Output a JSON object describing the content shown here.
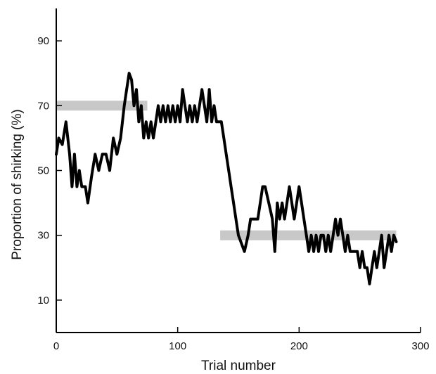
{
  "chart_data": {
    "type": "line",
    "xlabel": "Trial number",
    "ylabel": "Proportion of shirking (%)",
    "xlim": [
      0,
      300
    ],
    "ylim": [
      0,
      100
    ],
    "x_ticks": [
      0,
      100,
      200,
      300
    ],
    "y_ticks": [
      10,
      30,
      50,
      70,
      90
    ],
    "grid": false,
    "legend": "none",
    "line_color": "#000000",
    "reference_color": "#c8c8c8",
    "reference_lines": [
      {
        "y": 70,
        "x_start": 0,
        "x_end": 75
      },
      {
        "y": 30,
        "x_start": 135,
        "x_end": 280
      }
    ],
    "series": [
      {
        "x": [
          0,
          2,
          5,
          8,
          11,
          13,
          15,
          17,
          19,
          21,
          24,
          26,
          29,
          32,
          35,
          38,
          41,
          44,
          47,
          50,
          53,
          56,
          58,
          60,
          62,
          64,
          66,
          68,
          70,
          72,
          74,
          76,
          78,
          80,
          82,
          84,
          86,
          88,
          90,
          92,
          94,
          96,
          98,
          100,
          102,
          104,
          106,
          108,
          110,
          112,
          114,
          116,
          118,
          120,
          122,
          124,
          126,
          128,
          130,
          132,
          134,
          136,
          138,
          140,
          142,
          144,
          146,
          148,
          150,
          152,
          155,
          158,
          160,
          163,
          166,
          168,
          170,
          172,
          175,
          178,
          180,
          182,
          184,
          186,
          188,
          190,
          192,
          194,
          196,
          198,
          200,
          202,
          204,
          206,
          208,
          210,
          212,
          214,
          216,
          218,
          220,
          222,
          224,
          226,
          228,
          230,
          232,
          234,
          236,
          238,
          240,
          242,
          244,
          246,
          248,
          250,
          252,
          254,
          256,
          258,
          260,
          262,
          264,
          266,
          268,
          270,
          272,
          274,
          276,
          278,
          280
        ],
        "y": [
          55,
          60,
          58,
          65,
          55,
          45,
          55,
          45,
          50,
          45,
          45,
          40,
          48,
          55,
          50,
          55,
          55,
          50,
          60,
          55,
          60,
          70,
          75,
          80,
          78,
          70,
          75,
          65,
          70,
          60,
          65,
          60,
          65,
          60,
          65,
          70,
          65,
          70,
          65,
          70,
          65,
          70,
          65,
          70,
          65,
          75,
          70,
          65,
          70,
          65,
          70,
          65,
          70,
          75,
          70,
          65,
          75,
          65,
          70,
          65,
          65,
          65,
          60,
          55,
          50,
          45,
          40,
          35,
          30,
          28,
          25,
          30,
          35,
          35,
          35,
          40,
          45,
          45,
          40,
          35,
          25,
          40,
          35,
          40,
          35,
          40,
          45,
          40,
          35,
          40,
          45,
          40,
          35,
          30,
          25,
          30,
          25,
          30,
          25,
          30,
          30,
          25,
          30,
          25,
          30,
          35,
          30,
          35,
          30,
          25,
          30,
          25,
          25,
          25,
          25,
          20,
          25,
          20,
          20,
          15,
          20,
          25,
          20,
          25,
          30,
          20,
          25,
          30,
          25,
          30,
          28
        ]
      }
    ]
  }
}
